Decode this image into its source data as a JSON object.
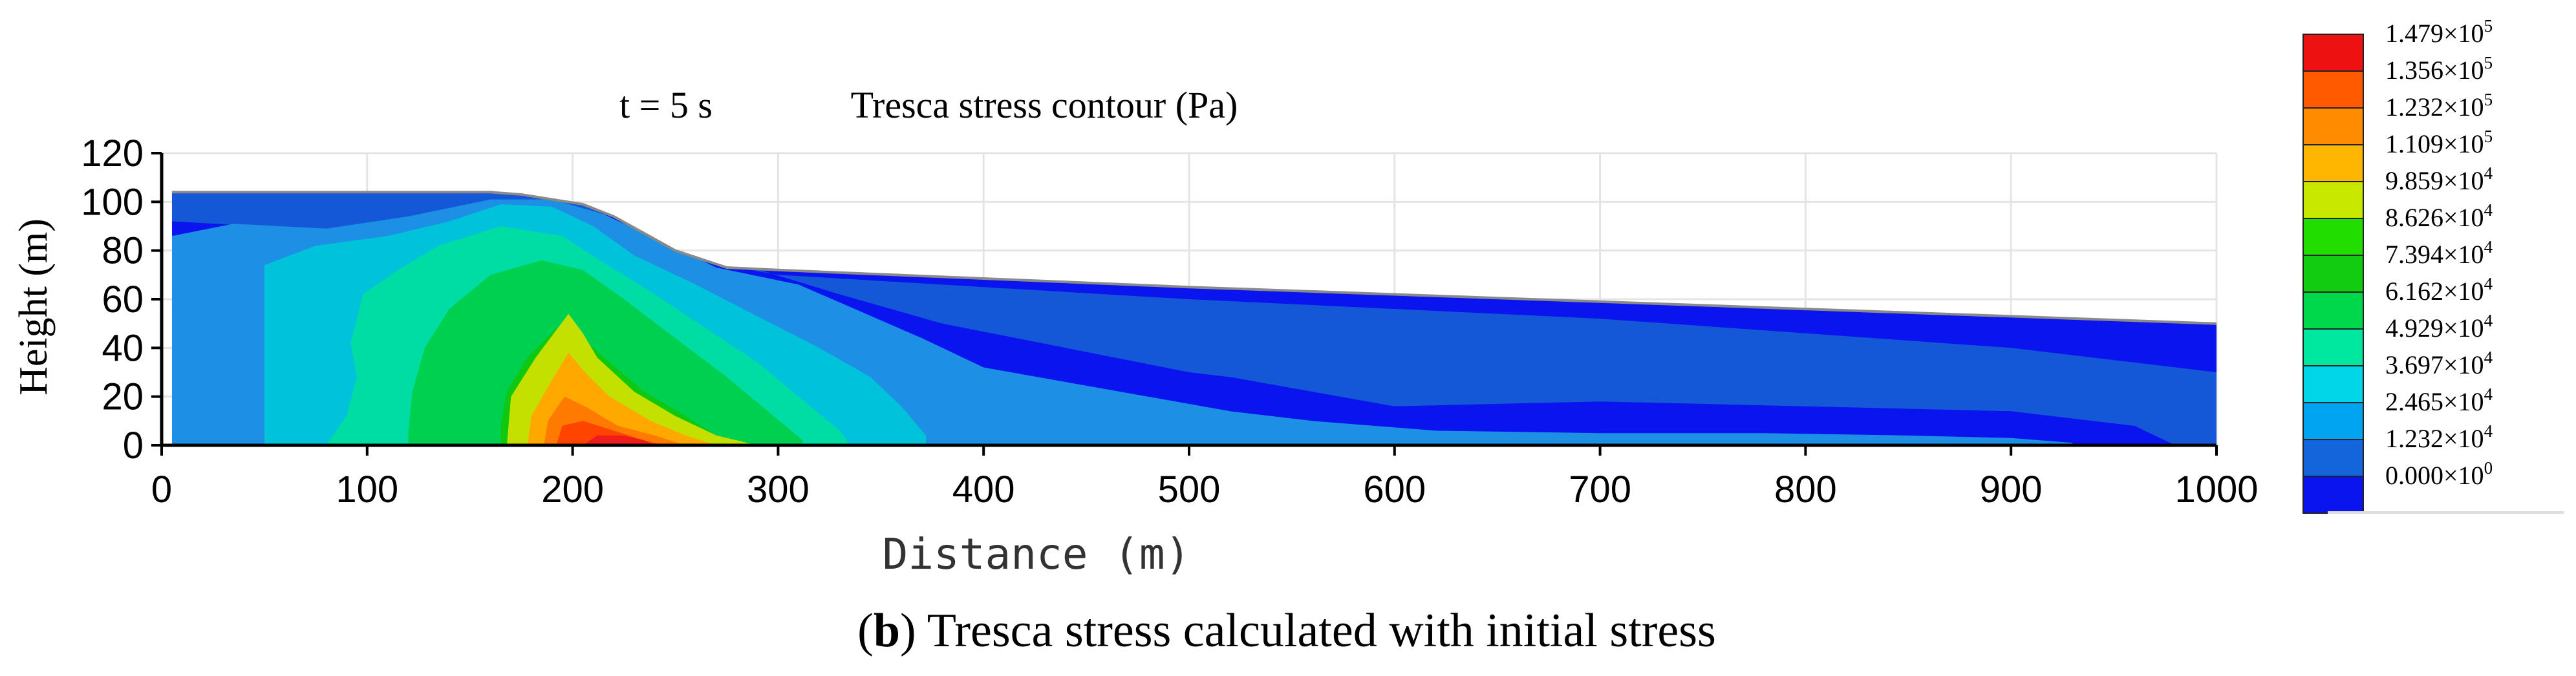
{
  "chart_data": {
    "type": "heatmap",
    "title_time": "t = 5 s",
    "title": "Tresca  stress contour  (Pa)",
    "xlabel": "Distance (m)",
    "ylabel": "Height (m)",
    "x_ticks": [
      "0",
      "100",
      "200",
      "300",
      "400",
      "500",
      "600",
      "700",
      "800",
      "900",
      "1000"
    ],
    "y_ticks": [
      "0",
      "20",
      "40",
      "60",
      "80",
      "100",
      "120"
    ],
    "xlim": [
      0,
      1000
    ],
    "ylim": [
      0,
      120
    ],
    "grid": true,
    "surface_profile": [
      [
        5,
        104
      ],
      [
        90,
        104
      ],
      [
        160,
        104
      ],
      [
        175,
        103
      ],
      [
        205,
        99
      ],
      [
        220,
        94
      ],
      [
        250,
        80
      ],
      [
        275,
        73
      ],
      [
        300,
        72
      ],
      [
        500,
        65
      ],
      [
        700,
        59
      ],
      [
        900,
        53
      ],
      [
        1000,
        50
      ]
    ],
    "legend": {
      "placement": "right",
      "levels": [
        {
          "label": "1.479×10",
          "exp": "5",
          "color": "#ee1111"
        },
        {
          "label": "1.356×10",
          "exp": "5",
          "color": "#ff5a00"
        },
        {
          "label": "1.232×10",
          "exp": "5",
          "color": "#ff8c00"
        },
        {
          "label": "1.109×10",
          "exp": "5",
          "color": "#ffb600"
        },
        {
          "label": "9.859×10",
          "exp": "4",
          "color": "#c8e800"
        },
        {
          "label": "8.626×10",
          "exp": "4",
          "color": "#22dd00"
        },
        {
          "label": "7.394×10",
          "exp": "4",
          "color": "#11cc11"
        },
        {
          "label": "6.162×10",
          "exp": "4",
          "color": "#00d84c"
        },
        {
          "label": "4.929×10",
          "exp": "4",
          "color": "#00e8a0"
        },
        {
          "label": "3.697×10",
          "exp": "4",
          "color": "#00d6e8"
        },
        {
          "label": "2.465×10",
          "exp": "4",
          "color": "#00a4f0"
        },
        {
          "label": "1.232×10",
          "exp": "4",
          "color": "#1464dc"
        },
        {
          "label": "0.000×10",
          "exp": "0",
          "color": "#0a14ee"
        }
      ]
    },
    "contours": [
      {
        "level": "2.465×10^4",
        "color": "#1d8fe4",
        "points": [
          [
            5,
            86
          ],
          [
            35,
            91
          ],
          [
            80,
            89
          ],
          [
            120,
            94
          ],
          [
            160,
            101
          ],
          [
            190,
            101
          ],
          [
            215,
            95
          ],
          [
            240,
            85
          ],
          [
            270,
            73
          ],
          [
            310,
            66
          ],
          [
            340,
            55
          ],
          [
            370,
            44
          ],
          [
            400,
            32
          ],
          [
            440,
            26
          ],
          [
            480,
            20
          ],
          [
            520,
            14
          ],
          [
            560,
            10
          ],
          [
            620,
            6
          ],
          [
            700,
            5
          ],
          [
            780,
            5
          ],
          [
            850,
            4
          ],
          [
            900,
            3
          ],
          [
            930,
            1
          ],
          [
            930,
            0
          ],
          [
            5,
            0
          ]
        ]
      },
      {
        "level": "3.697×10^4",
        "color": "#00c2da",
        "points": [
          [
            50,
            74
          ],
          [
            75,
            82
          ],
          [
            110,
            86
          ],
          [
            140,
            92
          ],
          [
            165,
            99
          ],
          [
            190,
            98
          ],
          [
            210,
            90
          ],
          [
            230,
            78
          ],
          [
            260,
            66
          ],
          [
            290,
            53
          ],
          [
            320,
            40
          ],
          [
            345,
            28
          ],
          [
            360,
            16
          ],
          [
            372,
            4
          ],
          [
            372,
            0
          ],
          [
            50,
            0
          ]
        ]
      },
      {
        "level": "4.929×10^4",
        "color": "#00dda4",
        "points": [
          [
            90,
            12
          ],
          [
            95,
            28
          ],
          [
            92,
            42
          ],
          [
            98,
            62
          ],
          [
            115,
            72
          ],
          [
            135,
            82
          ],
          [
            165,
            90
          ],
          [
            195,
            86
          ],
          [
            215,
            75
          ],
          [
            240,
            62
          ],
          [
            265,
            48
          ],
          [
            290,
            34
          ],
          [
            310,
            20
          ],
          [
            330,
            6
          ],
          [
            335,
            0
          ],
          [
            80,
            0
          ]
        ]
      },
      {
        "level": "6.162×10^4",
        "color": "#00d050",
        "points": [
          [
            120,
            5
          ],
          [
            122,
            22
          ],
          [
            128,
            40
          ],
          [
            140,
            56
          ],
          [
            160,
            70
          ],
          [
            185,
            76
          ],
          [
            205,
            72
          ],
          [
            225,
            60
          ],
          [
            250,
            44
          ],
          [
            275,
            28
          ],
          [
            295,
            14
          ],
          [
            312,
            2
          ],
          [
            312,
            0
          ],
          [
            120,
            0
          ]
        ]
      },
      {
        "level": "7.394×10^4",
        "color": "#10c810",
        "points": [
          [
            165,
            8
          ],
          [
            168,
            22
          ],
          [
            178,
            36
          ],
          [
            192,
            48
          ],
          [
            205,
            44
          ],
          [
            218,
            34
          ],
          [
            235,
            22
          ],
          [
            255,
            12
          ],
          [
            270,
            4
          ],
          [
            275,
            0
          ],
          [
            165,
            0
          ]
        ]
      },
      {
        "level": "9.859×10^4",
        "color": "#c4e000",
        "points": [
          [
            168,
            0
          ],
          [
            170,
            20
          ],
          [
            182,
            36
          ],
          [
            198,
            54
          ],
          [
            205,
            46
          ],
          [
            212,
            36
          ],
          [
            230,
            22
          ],
          [
            250,
            12
          ],
          [
            270,
            4
          ],
          [
            290,
            0
          ]
        ]
      },
      {
        "level": "1.109×10^5",
        "color": "#ffa800",
        "points": [
          [
            178,
            0
          ],
          [
            180,
            12
          ],
          [
            188,
            24
          ],
          [
            198,
            38
          ],
          [
            206,
            30
          ],
          [
            218,
            20
          ],
          [
            238,
            10
          ],
          [
            255,
            4
          ],
          [
            270,
            0
          ]
        ]
      },
      {
        "level": "1.232×10^5",
        "color": "#ff7a00",
        "points": [
          [
            186,
            0
          ],
          [
            188,
            10
          ],
          [
            196,
            20
          ],
          [
            206,
            16
          ],
          [
            222,
            8
          ],
          [
            240,
            4
          ],
          [
            255,
            0
          ]
        ]
      },
      {
        "level": "1.356×10^5",
        "color": "#ff4400",
        "points": [
          [
            192,
            0
          ],
          [
            195,
            8
          ],
          [
            205,
            10
          ],
          [
            220,
            6
          ],
          [
            235,
            2
          ],
          [
            245,
            0
          ]
        ]
      },
      {
        "level": "1.479×10^5",
        "color": "#ee1c1c",
        "points": [
          [
            205,
            0
          ],
          [
            212,
            4
          ],
          [
            225,
            4
          ],
          [
            235,
            2
          ],
          [
            240,
            0
          ]
        ]
      }
    ]
  },
  "caption": {
    "open": "(",
    "letter": "b",
    "rest": ") Tresca stress calculated with initial stress"
  }
}
